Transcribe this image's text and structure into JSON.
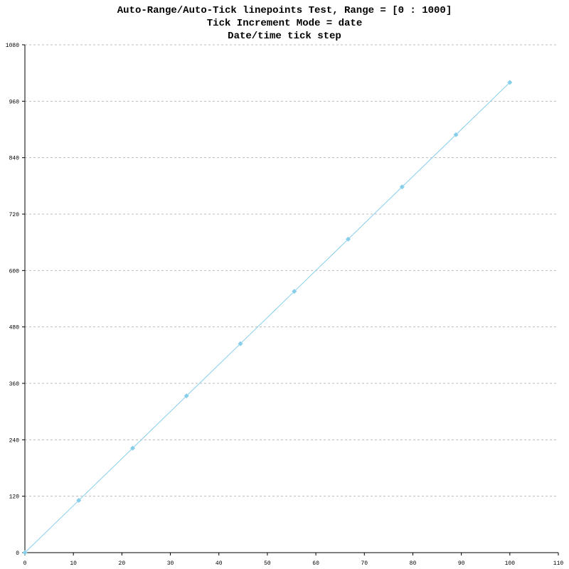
{
  "chart_data": {
    "type": "line",
    "title": [
      "Auto-Range/Auto-Tick linepoints Test, Range = [0 : 1000]",
      "Tick Increment Mode = date",
      "Date/time tick step"
    ],
    "x": [
      0,
      11.11,
      22.22,
      33.33,
      44.44,
      55.56,
      66.67,
      77.78,
      88.89,
      100
    ],
    "series": [
      {
        "color": "#87ceeb",
        "values": [
          0,
          111.1,
          222.2,
          333.3,
          444.4,
          555.6,
          666.7,
          777.8,
          888.9,
          1000
        ]
      }
    ],
    "xlim": [
      0,
      110
    ],
    "xticks": [
      0,
      10,
      20,
      30,
      40,
      50,
      60,
      70,
      80,
      90,
      100,
      110
    ],
    "ylim": [
      0,
      1080
    ],
    "yticks": [
      0,
      120,
      240,
      360,
      480,
      600,
      720,
      840,
      960,
      1080
    ],
    "grid": true
  }
}
